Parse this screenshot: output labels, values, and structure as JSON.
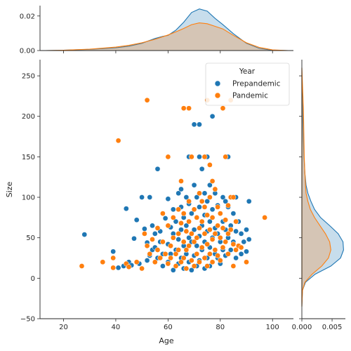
{
  "chart_data": {
    "type": "scatter",
    "title": "",
    "xlabel": "Age",
    "ylabel": "Size",
    "xlim": [
      11,
      108
    ],
    "ylim": [
      -50,
      270
    ],
    "xticks": [
      20,
      40,
      60,
      80,
      100
    ],
    "yticks": [
      -50,
      0,
      50,
      100,
      150,
      200,
      250
    ],
    "grid": false,
    "legend": {
      "title": "Year",
      "placement": "top-right",
      "entries": [
        "Prepandemic",
        "Pandemic"
      ]
    },
    "series": [
      {
        "name": "Prepandemic",
        "color": "#1f77b4",
        "points": [
          [
            28,
            54
          ],
          [
            39,
            33
          ],
          [
            41,
            13
          ],
          [
            43,
            15
          ],
          [
            44,
            86
          ],
          [
            45,
            20
          ],
          [
            46,
            16
          ],
          [
            47,
            49
          ],
          [
            48,
            72
          ],
          [
            49,
            18
          ],
          [
            50,
            100
          ],
          [
            51,
            61
          ],
          [
            52,
            44
          ],
          [
            52,
            22
          ],
          [
            53,
            100
          ],
          [
            53,
            28
          ],
          [
            54,
            65
          ],
          [
            54,
            35
          ],
          [
            55,
            55
          ],
          [
            55,
            38
          ],
          [
            56,
            135
          ],
          [
            56,
            25
          ],
          [
            57,
            58
          ],
          [
            57,
            45
          ],
          [
            58,
            30
          ],
          [
            58,
            15
          ],
          [
            59,
            74
          ],
          [
            60,
            98
          ],
          [
            60,
            42
          ],
          [
            60,
            20
          ],
          [
            61,
            63
          ],
          [
            61,
            30
          ],
          [
            62,
            85
          ],
          [
            62,
            55
          ],
          [
            62,
            10
          ],
          [
            63,
            70
          ],
          [
            63,
            35
          ],
          [
            64,
            105
          ],
          [
            64,
            48
          ],
          [
            64,
            18
          ],
          [
            65,
            110
          ],
          [
            65,
            88
          ],
          [
            65,
            60
          ],
          [
            65,
            25
          ],
          [
            66,
            75
          ],
          [
            66,
            40
          ],
          [
            66,
            12
          ],
          [
            67,
            100
          ],
          [
            67,
            65
          ],
          [
            67,
            30
          ],
          [
            68,
            150
          ],
          [
            68,
            92
          ],
          [
            68,
            50
          ],
          [
            68,
            20
          ],
          [
            69,
            80
          ],
          [
            69,
            45
          ],
          [
            69,
            10
          ],
          [
            70,
            190
          ],
          [
            70,
            115
          ],
          [
            70,
            60
          ],
          [
            70,
            28
          ],
          [
            71,
            100
          ],
          [
            71,
            75
          ],
          [
            71,
            40
          ],
          [
            71,
            15
          ],
          [
            72,
            190
          ],
          [
            72,
            150
          ],
          [
            72,
            88
          ],
          [
            72,
            52
          ],
          [
            72,
            22
          ],
          [
            73,
            135
          ],
          [
            73,
            65
          ],
          [
            73,
            35
          ],
          [
            74,
            105
          ],
          [
            74,
            78
          ],
          [
            74,
            45
          ],
          [
            74,
            12
          ],
          [
            75,
            150
          ],
          [
            75,
            95
          ],
          [
            75,
            58
          ],
          [
            75,
            25
          ],
          [
            76,
            115
          ],
          [
            76,
            70
          ],
          [
            76,
            38
          ],
          [
            76,
            15
          ],
          [
            77,
            200
          ],
          [
            77,
            85
          ],
          [
            77,
            50
          ],
          [
            77,
            20
          ],
          [
            78,
            105
          ],
          [
            78,
            62
          ],
          [
            78,
            30
          ],
          [
            79,
            90
          ],
          [
            79,
            55
          ],
          [
            79,
            25
          ],
          [
            80,
            80
          ],
          [
            80,
            45
          ],
          [
            80,
            18
          ],
          [
            81,
            100
          ],
          [
            81,
            70
          ],
          [
            81,
            35
          ],
          [
            82,
            95
          ],
          [
            82,
            60
          ],
          [
            82,
            28
          ],
          [
            83,
            150
          ],
          [
            83,
            88
          ],
          [
            83,
            50
          ],
          [
            84,
            100
          ],
          [
            84,
            65
          ],
          [
            84,
            35
          ],
          [
            85,
            80
          ],
          [
            85,
            45
          ],
          [
            86,
            100
          ],
          [
            86,
            58
          ],
          [
            86,
            25
          ],
          [
            87,
            70
          ],
          [
            87,
            40
          ],
          [
            88,
            55
          ],
          [
            88,
            30
          ],
          [
            89,
            45
          ],
          [
            90,
            60
          ],
          [
            90,
            33
          ],
          [
            91,
            95
          ],
          [
            91,
            48
          ]
        ]
      },
      {
        "name": "Pandemic",
        "color": "#ff7f0e",
        "points": [
          [
            27,
            15
          ],
          [
            35,
            20
          ],
          [
            39,
            25
          ],
          [
            39,
            13
          ],
          [
            41,
            170
          ],
          [
            44,
            18
          ],
          [
            45,
            14
          ],
          [
            48,
            20
          ],
          [
            50,
            12
          ],
          [
            51,
            55
          ],
          [
            52,
            220
          ],
          [
            52,
            40
          ],
          [
            53,
            30
          ],
          [
            54,
            48
          ],
          [
            55,
            20
          ],
          [
            56,
            62
          ],
          [
            56,
            35
          ],
          [
            57,
            25
          ],
          [
            58,
            80
          ],
          [
            58,
            45
          ],
          [
            59,
            30
          ],
          [
            60,
            150
          ],
          [
            60,
            65
          ],
          [
            60,
            18
          ],
          [
            61,
            40
          ],
          [
            61,
            25
          ],
          [
            62,
            75
          ],
          [
            62,
            50
          ],
          [
            63,
            30
          ],
          [
            63,
            15
          ],
          [
            64,
            85
          ],
          [
            64,
            55
          ],
          [
            64,
            35
          ],
          [
            65,
            120
          ],
          [
            65,
            68
          ],
          [
            65,
            20
          ],
          [
            66,
            210
          ],
          [
            66,
            80
          ],
          [
            66,
            45
          ],
          [
            66,
            25
          ],
          [
            67,
            58
          ],
          [
            67,
            35
          ],
          [
            67,
            12
          ],
          [
            68,
            210
          ],
          [
            68,
            95
          ],
          [
            68,
            70
          ],
          [
            68,
            40
          ],
          [
            69,
            150
          ],
          [
            69,
            55
          ],
          [
            69,
            22
          ],
          [
            70,
            85
          ],
          [
            70,
            45
          ],
          [
            70,
            15
          ],
          [
            71,
            75
          ],
          [
            71,
            50
          ],
          [
            71,
            30
          ],
          [
            72,
            105
          ],
          [
            72,
            62
          ],
          [
            72,
            20
          ],
          [
            73,
            95
          ],
          [
            73,
            70
          ],
          [
            73,
            38
          ],
          [
            74,
            150
          ],
          [
            74,
            88
          ],
          [
            74,
            55
          ],
          [
            74,
            25
          ],
          [
            75,
            220
          ],
          [
            75,
            78
          ],
          [
            75,
            42
          ],
          [
            75,
            15
          ],
          [
            76,
            140
          ],
          [
            76,
            100
          ],
          [
            76,
            60
          ],
          [
            76,
            30
          ],
          [
            77,
            120
          ],
          [
            77,
            75
          ],
          [
            77,
            48
          ],
          [
            77,
            20
          ],
          [
            78,
            110
          ],
          [
            78,
            55
          ],
          [
            78,
            35
          ],
          [
            79,
            88
          ],
          [
            79,
            65
          ],
          [
            79,
            28
          ],
          [
            80,
            80
          ],
          [
            80,
            50
          ],
          [
            80,
            22
          ],
          [
            81,
            210
          ],
          [
            81,
            62
          ],
          [
            81,
            38
          ],
          [
            82,
            150
          ],
          [
            82,
            72
          ],
          [
            82,
            45
          ],
          [
            83,
            90
          ],
          [
            83,
            55
          ],
          [
            83,
            30
          ],
          [
            84,
            220
          ],
          [
            84,
            100
          ],
          [
            84,
            60
          ],
          [
            85,
            100
          ],
          [
            85,
            42
          ],
          [
            85,
            15
          ],
          [
            86,
            70
          ],
          [
            86,
            35
          ],
          [
            87,
            40
          ],
          [
            88,
            38
          ],
          [
            90,
            20
          ],
          [
            97,
            75
          ]
        ]
      }
    ],
    "top_marginal": {
      "type": "kde",
      "ylim": [
        0,
        0.026
      ],
      "yticks": [
        0,
        0.02
      ],
      "ytick_labels": [
        "0.00",
        "0.02"
      ],
      "series": [
        {
          "name": "Prepandemic",
          "color": "#1f77b4",
          "x": [
            13,
            20,
            30,
            40,
            45,
            50,
            55,
            58,
            60,
            63,
            66,
            69,
            72,
            75,
            78,
            81,
            85,
            90,
            95,
            100,
            106
          ],
          "y": [
            0,
            0.0002,
            0.0007,
            0.0016,
            0.0025,
            0.0042,
            0.007,
            0.0082,
            0.0088,
            0.0118,
            0.0164,
            0.022,
            0.0241,
            0.0228,
            0.0186,
            0.015,
            0.0098,
            0.0042,
            0.0012,
            0.0002,
            0
          ]
        },
        {
          "name": "Pandemic",
          "color": "#ff7f0e",
          "x": [
            13,
            20,
            30,
            40,
            45,
            50,
            55,
            60,
            63,
            66,
            69,
            72,
            75,
            78,
            81,
            85,
            90,
            95,
            100,
            106
          ],
          "y": [
            0,
            0.0002,
            0.0008,
            0.002,
            0.003,
            0.0045,
            0.0065,
            0.009,
            0.0108,
            0.0128,
            0.015,
            0.016,
            0.0155,
            0.014,
            0.0125,
            0.0088,
            0.0045,
            0.0018,
            0.0004,
            0
          ]
        }
      ]
    },
    "right_marginal": {
      "type": "kde",
      "xlim": [
        0,
        0.0072
      ],
      "xticks": [
        0,
        0.005
      ],
      "xtick_labels": [
        "0.000",
        "0.005"
      ],
      "series": [
        {
          "name": "Prepandemic",
          "color": "#1f77b4",
          "y": [
            -35,
            -15,
            -5,
            5,
            15,
            25,
            35,
            45,
            55,
            65,
            75,
            85,
            95,
            105,
            115,
            130,
            150,
            170,
            190,
            210,
            230,
            260
          ],
          "x": [
            0,
            0.0001,
            0.0006,
            0.0022,
            0.0048,
            0.0064,
            0.0069,
            0.0068,
            0.006,
            0.0046,
            0.0031,
            0.0021,
            0.0015,
            0.001,
            0.0007,
            0.0005,
            0.00035,
            0.00025,
            0.00018,
            0.0001,
            5e-05,
            0
          ]
        },
        {
          "name": "Pandemic",
          "color": "#ff7f0e",
          "y": [
            -35,
            -15,
            -5,
            5,
            15,
            25,
            35,
            45,
            55,
            65,
            75,
            85,
            95,
            105,
            115,
            130,
            150,
            170,
            190,
            210,
            230,
            260
          ],
          "x": [
            0,
            0.0001,
            0.0005,
            0.0017,
            0.0033,
            0.0044,
            0.0048,
            0.0046,
            0.0039,
            0.003,
            0.0021,
            0.0014,
            0.001,
            0.0007,
            0.0006,
            0.0005,
            0.0004,
            0.00035,
            0.0003,
            0.00025,
            0.00015,
            0
          ]
        }
      ]
    }
  }
}
